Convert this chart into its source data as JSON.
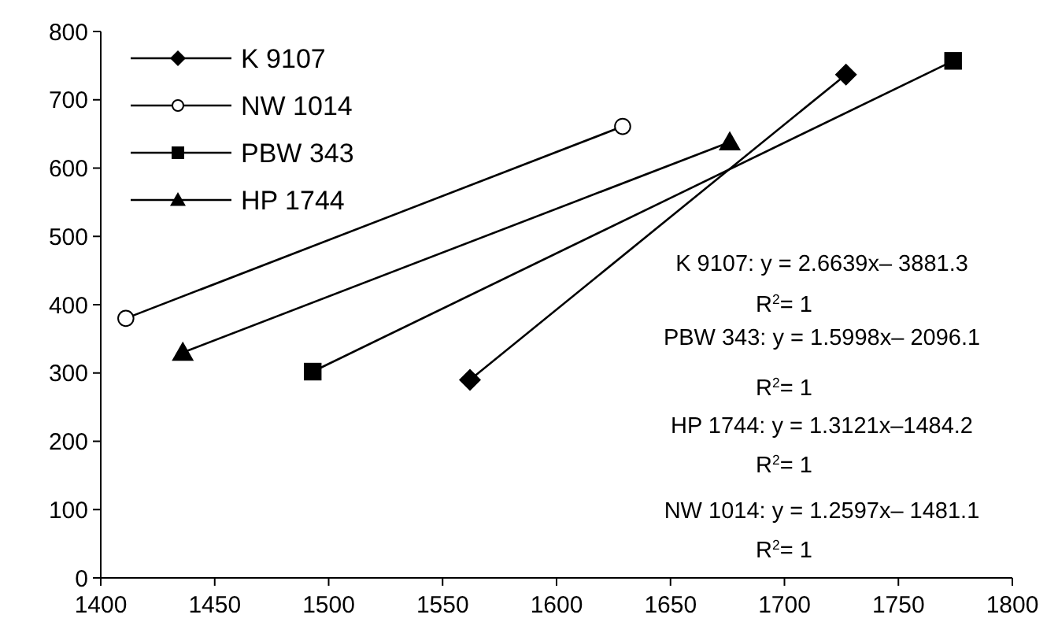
{
  "chart_data": {
    "type": "line",
    "xlim": [
      1400,
      1800
    ],
    "xticks": [
      1400,
      1450,
      1500,
      1550,
      1600,
      1650,
      1700,
      1750,
      1800
    ],
    "ylim": [
      0,
      800
    ],
    "yticks": [
      0,
      100,
      200,
      300,
      400,
      500,
      600,
      700,
      800
    ],
    "grid": false,
    "legend": "top left",
    "line_style": "solid",
    "series": [
      {
        "name": "K 9107",
        "color": "#000000",
        "marker": "diamond",
        "x": [
          1562,
          1727
        ],
        "values": [
          290,
          737
        ]
      },
      {
        "name": "NW 1014",
        "color": "#000000",
        "marker": "circle",
        "x": [
          1411,
          1629
        ],
        "values": [
          380,
          661
        ]
      },
      {
        "name": "PBW 343",
        "color": "#000000",
        "marker": "square",
        "x": [
          1493,
          1774
        ],
        "values": [
          302,
          757
        ]
      },
      {
        "name": "HP 1744",
        "color": "#000000",
        "marker": "triangle",
        "x": [
          1436,
          1676
        ],
        "values": [
          330,
          638
        ]
      }
    ],
    "annotations": [
      "K 9107:    y = 2.6639x– 3881.3",
      "R$^{2}$= 1",
      "PBW 343: y = 1.5998x– 2096.1",
      "R$^{2}$= 1",
      "HP 1744: y = 1.3121x–1484.2",
      "R$^{2}$= 1",
      "NW 1014: y = 1.2597x– 1481.1",
      "R$^{2}$= 1"
    ]
  }
}
